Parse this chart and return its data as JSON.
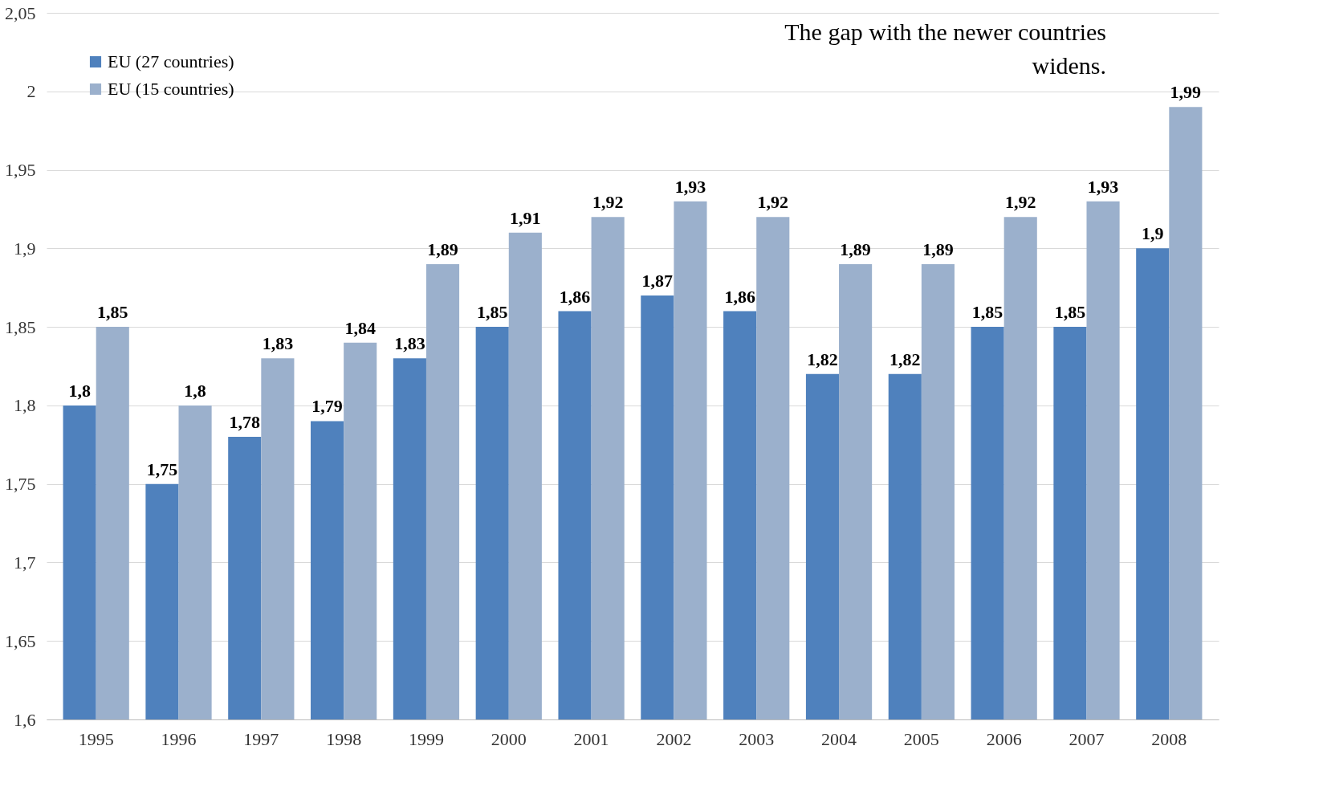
{
  "chart_data": {
    "type": "bar",
    "categories": [
      "1995",
      "1996",
      "1997",
      "1998",
      "1999",
      "2000",
      "2001",
      "2002",
      "2003",
      "2004",
      "2005",
      "2006",
      "2007",
      "2008"
    ],
    "series": [
      {
        "name": "EU (27 countries)",
        "color": "#4f81bd",
        "values": [
          1.8,
          1.75,
          1.78,
          1.79,
          1.83,
          1.85,
          1.86,
          1.87,
          1.86,
          1.82,
          1.82,
          1.85,
          1.85,
          1.9
        ],
        "value_labels": [
          "1,8",
          "1,75",
          "1,78",
          "1,79",
          "1,83",
          "1,85",
          "1,86",
          "1,87",
          "1,86",
          "1,82",
          "1,82",
          "1,85",
          "1,85",
          "1,9"
        ]
      },
      {
        "name": "EU (15 countries)",
        "color": "#9bb0cc",
        "values": [
          1.85,
          1.8,
          1.83,
          1.84,
          1.89,
          1.91,
          1.92,
          1.93,
          1.92,
          1.89,
          1.89,
          1.92,
          1.93,
          1.99
        ],
        "value_labels": [
          "1,85",
          "1,8",
          "1,83",
          "1,84",
          "1,89",
          "1,91",
          "1,92",
          "1,93",
          "1,92",
          "1,89",
          "1,89",
          "1,92",
          "1,93",
          "1,99"
        ]
      }
    ],
    "ylim": [
      1.6,
      2.05
    ],
    "yticks": [
      {
        "value": 1.6,
        "label": "1,6"
      },
      {
        "value": 1.65,
        "label": "1,65"
      },
      {
        "value": 1.7,
        "label": "1,7"
      },
      {
        "value": 1.75,
        "label": "1,75"
      },
      {
        "value": 1.8,
        "label": "1,8"
      },
      {
        "value": 1.85,
        "label": "1,85"
      },
      {
        "value": 1.9,
        "label": "1,9"
      },
      {
        "value": 1.95,
        "label": "1,95"
      },
      2,
      {
        "value": 2.05,
        "label": "2,05"
      }
    ],
    "grid": "y",
    "legend": "top left",
    "annotations": [
      "The gap with the newer countries widens."
    ]
  }
}
